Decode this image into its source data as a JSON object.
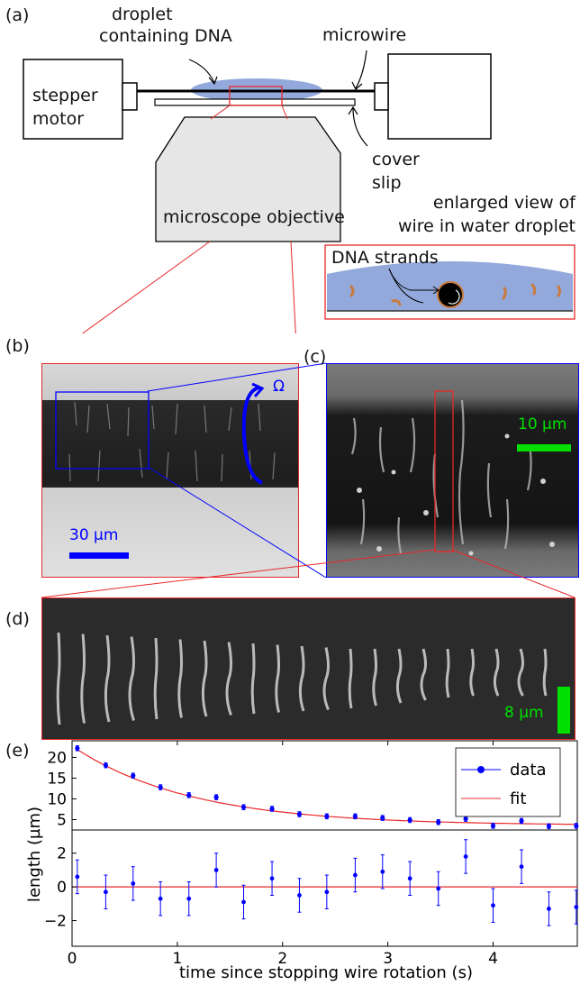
{
  "panels": {
    "a": {
      "letter": "(a)"
    },
    "b": {
      "letter": "(b)"
    },
    "c": {
      "letter": "(c)"
    },
    "d": {
      "letter": "(d)"
    },
    "e": {
      "letter": "(e)"
    }
  },
  "schematic": {
    "droplet_label": [
      "droplet",
      "containing DNA"
    ],
    "microwire_label": "microwire",
    "motor_label": [
      "stepper",
      "motor"
    ],
    "coverslip_label": [
      "cover",
      "slip"
    ],
    "objective_label": "microscope objective",
    "enlarged_label": [
      "enlarged view of",
      "wire in water droplet"
    ],
    "dna_label": "DNA strands"
  },
  "images": {
    "rotation_symbol": "Ω",
    "scale_b": "30 µm",
    "scale_c": "10 µm",
    "scale_d": "8 µm"
  },
  "colors": {
    "blue": "#0000ff",
    "red": "#e8282a",
    "green": "#00e000",
    "droplet": "#93a9dc",
    "objective": "#e6e6e6",
    "dna": "#c97a3c"
  },
  "chart_data": {
    "type": "line",
    "xlabel": "time since stopping wire rotation (s)",
    "ylabel": "length (µm)",
    "xlim": [
      0,
      4.8
    ],
    "xticks": [
      "0",
      "1",
      "2",
      "3",
      "4"
    ],
    "top": {
      "ylim": [
        2.5,
        24
      ],
      "yticks": [
        "5",
        "10",
        "15",
        "20"
      ],
      "series": [
        {
          "name": "data",
          "color": "#0000ff",
          "x": [
            0.05,
            0.32,
            0.58,
            0.84,
            1.11,
            1.37,
            1.63,
            1.9,
            2.16,
            2.42,
            2.69,
            2.95,
            3.21,
            3.48,
            3.74,
            4.0,
            4.27,
            4.53,
            4.79
          ],
          "y": [
            22.2,
            18.1,
            15.6,
            12.8,
            10.9,
            10.4,
            8.0,
            7.6,
            6.3,
            5.8,
            5.8,
            5.4,
            4.9,
            4.4,
            5.2,
            3.5,
            4.7,
            3.4,
            3.5
          ],
          "err": [
            0.6,
            0.6,
            0.6,
            0.6,
            0.6,
            0.6,
            0.6,
            0.6,
            0.6,
            0.6,
            0.6,
            0.6,
            0.6,
            0.6,
            0.6,
            0.6,
            0.6,
            0.6,
            0.6
          ]
        },
        {
          "name": "fit",
          "color": "#e8282a",
          "model": "exponential",
          "a": 18.3,
          "tau": 1.12,
          "c": 3.6
        }
      ]
    },
    "bottom": {
      "ylim": [
        -3.2,
        3.0
      ],
      "yticks": [
        "−2",
        "0",
        "2"
      ],
      "residuals": {
        "x": [
          0.05,
          0.32,
          0.58,
          0.84,
          1.11,
          1.37,
          1.63,
          1.9,
          2.16,
          2.42,
          2.69,
          2.95,
          3.21,
          3.48,
          3.74,
          4.0,
          4.27,
          4.53,
          4.79
        ],
        "y": [
          0.6,
          -0.3,
          0.2,
          -0.7,
          -0.7,
          1.0,
          -0.9,
          0.5,
          -0.5,
          -0.3,
          0.7,
          0.9,
          0.5,
          -0.1,
          1.8,
          -1.1,
          1.2,
          -1.3,
          -1.2
        ],
        "err": [
          1.0,
          1.0,
          1.0,
          1.0,
          1.0,
          1.0,
          1.0,
          1.0,
          1.0,
          1.0,
          1.0,
          1.0,
          1.0,
          1.0,
          1.0,
          1.0,
          1.0,
          1.0,
          1.0
        ]
      }
    }
  }
}
